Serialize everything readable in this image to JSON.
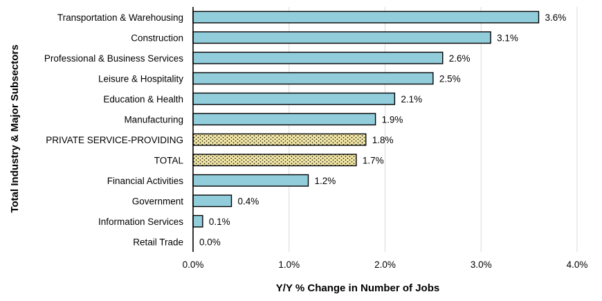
{
  "chart_data": {
    "type": "bar",
    "orientation": "horizontal",
    "title": "",
    "xlabel": "Y/Y % Change in Number of Jobs",
    "ylabel": "Total Industry & Major Subsectors",
    "xlim": [
      0,
      4.0
    ],
    "x_ticks": [
      0,
      1,
      2,
      3,
      4
    ],
    "x_tick_labels": [
      "0.0%",
      "1.0%",
      "2.0%",
      "3.0%",
      "4.0%"
    ],
    "grid": "vertical",
    "categories": [
      "Transportation & Warehousing",
      "Construction",
      "Professional & Business Services",
      "Leisure & Hospitality",
      "Education & Health",
      "Manufacturing",
      "PRIVATE SERVICE-PROVIDING",
      "TOTAL",
      "Financial Activities",
      "Government",
      "Information Services",
      "Retail Trade"
    ],
    "values": [
      3.6,
      3.1,
      2.6,
      2.5,
      2.1,
      1.9,
      1.8,
      1.7,
      1.2,
      0.4,
      0.1,
      0.0
    ],
    "value_labels": [
      "3.6%",
      "3.1%",
      "2.6%",
      "2.5%",
      "2.1%",
      "1.9%",
      "1.8%",
      "1.7%",
      "1.2%",
      "0.4%",
      "0.1%",
      "0.0%"
    ],
    "styles": [
      "solid",
      "solid",
      "solid",
      "solid",
      "solid",
      "solid",
      "dotted",
      "dotted",
      "solid",
      "solid",
      "solid",
      "solid"
    ],
    "colors": {
      "bar_fill": "#92cddc",
      "pattern_fill": "#f5e9a6",
      "pattern_dots": "#222222",
      "bar_stroke": "#000000",
      "grid": "#d9d9d9"
    }
  }
}
